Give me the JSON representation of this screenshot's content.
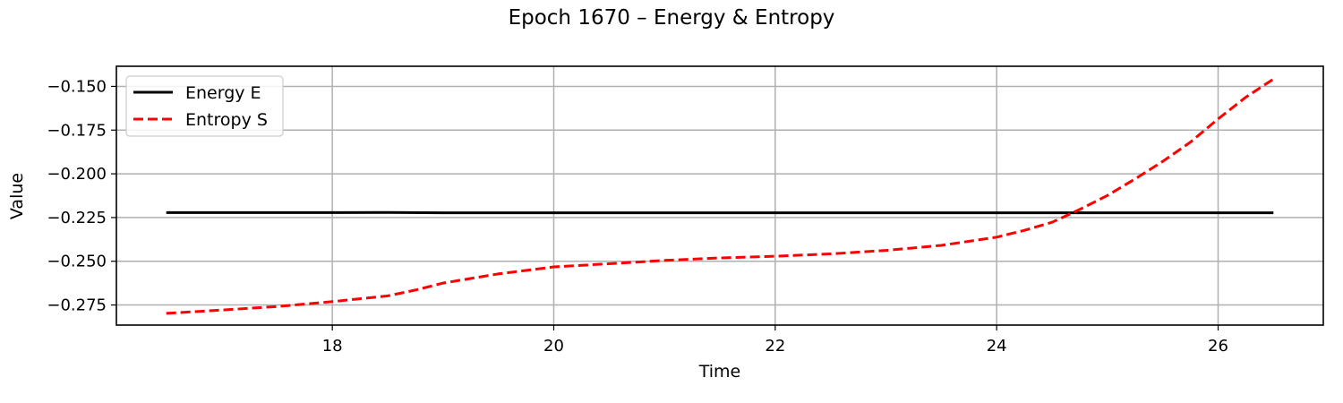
{
  "chart_data": {
    "type": "line",
    "title": "Epoch 1670 – Energy & Entropy",
    "xlabel": "Time",
    "ylabel": "Value",
    "xlim": [
      16.05,
      26.95
    ],
    "ylim": [
      -0.2865,
      -0.1385
    ],
    "xticks": [
      18,
      20,
      22,
      24,
      26
    ],
    "xtick_labels": [
      "18",
      "20",
      "22",
      "24",
      "26"
    ],
    "yticks": [
      -0.275,
      -0.25,
      -0.225,
      -0.2,
      -0.175,
      -0.15
    ],
    "ytick_labels": [
      "−0.275",
      "−0.250",
      "−0.225",
      "−0.200",
      "−0.175",
      "−0.150"
    ],
    "grid": true,
    "legend_position": "top-left",
    "series": [
      {
        "name": "Energy E",
        "color": "#000000",
        "style": "solid",
        "x": [
          16.5,
          17.0,
          17.5,
          18.0,
          18.5,
          19.0,
          19.5,
          20.0,
          20.5,
          21.0,
          21.5,
          22.0,
          22.5,
          23.0,
          23.5,
          24.0,
          24.5,
          25.0,
          25.5,
          26.0,
          26.5
        ],
        "y": [
          -0.2222,
          -0.2222,
          -0.2222,
          -0.2222,
          -0.2221,
          -0.2223,
          -0.2223,
          -0.2223,
          -0.2223,
          -0.2223,
          -0.2223,
          -0.2223,
          -0.2223,
          -0.2223,
          -0.2223,
          -0.2223,
          -0.2223,
          -0.2223,
          -0.2223,
          -0.2223,
          -0.2223
        ]
      },
      {
        "name": "Entropy S",
        "color": "#ff0000",
        "style": "dashed",
        "x": [
          16.5,
          17.0,
          17.5,
          18.0,
          18.5,
          18.75,
          19.0,
          19.5,
          20.0,
          20.5,
          21.0,
          21.5,
          22.0,
          22.5,
          23.0,
          23.5,
          24.0,
          24.25,
          24.5,
          24.75,
          25.0,
          25.25,
          25.5,
          25.75,
          26.0,
          26.25,
          26.5
        ],
        "y": [
          -0.2798,
          -0.2779,
          -0.2759,
          -0.2731,
          -0.2698,
          -0.2665,
          -0.2625,
          -0.2572,
          -0.2532,
          -0.2514,
          -0.2495,
          -0.2481,
          -0.2471,
          -0.2458,
          -0.2438,
          -0.2409,
          -0.2362,
          -0.2323,
          -0.2277,
          -0.2204,
          -0.2124,
          -0.2029,
          -0.1929,
          -0.1819,
          -0.1686,
          -0.1562,
          -0.1458
        ]
      }
    ]
  }
}
